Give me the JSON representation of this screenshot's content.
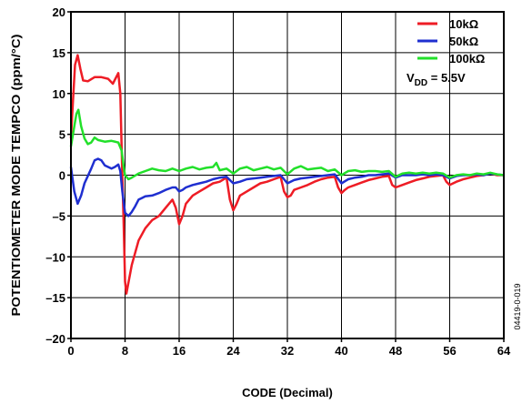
{
  "figure_id": "04419-0-019",
  "chart_data": {
    "type": "line",
    "title": "",
    "xlabel": "CODE (Decimal)",
    "ylabel": "POTENTIOMETER MODE TEMPCO (ppm/°C)",
    "xlim": [
      0,
      64
    ],
    "ylim": [
      -20,
      20
    ],
    "x_ticks": [
      0,
      8,
      16,
      24,
      32,
      40,
      48,
      56,
      64
    ],
    "y_ticks": [
      -20,
      -15,
      -10,
      -5,
      0,
      5,
      10,
      15,
      20
    ],
    "x_tick_labels": [
      "0",
      "8",
      "16",
      "24",
      "32",
      "40",
      "48",
      "56",
      "64"
    ],
    "y_tick_labels": [
      "–20",
      "–15",
      "–10",
      "–5",
      "0",
      "5",
      "10",
      "15",
      "20"
    ],
    "grid": true,
    "legend_position": "top-right",
    "annotation": {
      "main": "V",
      "sub": "DD",
      "rest": " = 5.5V"
    },
    "series": [
      {
        "name": "10kΩ",
        "color": "#ee1c25",
        "points": [
          [
            0,
            4.5
          ],
          [
            0.3,
            9
          ],
          [
            0.6,
            13.5
          ],
          [
            1,
            14.7
          ],
          [
            1.4,
            13
          ],
          [
            1.8,
            11.6
          ],
          [
            2.5,
            11.5
          ],
          [
            3.5,
            12
          ],
          [
            4.5,
            12
          ],
          [
            5.5,
            11.8
          ],
          [
            6.2,
            11.2
          ],
          [
            7,
            12.5
          ],
          [
            7.3,
            10
          ],
          [
            7.6,
            0
          ],
          [
            7.8,
            -6
          ],
          [
            8,
            -13
          ],
          [
            8.2,
            -14.5
          ],
          [
            9,
            -11
          ],
          [
            10,
            -8
          ],
          [
            11,
            -6.5
          ],
          [
            12,
            -5.5
          ],
          [
            13,
            -5
          ],
          [
            14,
            -4
          ],
          [
            15,
            -3
          ],
          [
            15.5,
            -4
          ],
          [
            16,
            -6
          ],
          [
            16.5,
            -5
          ],
          [
            17,
            -3.5
          ],
          [
            18,
            -2.5
          ],
          [
            19,
            -2
          ],
          [
            20,
            -1.5
          ],
          [
            21,
            -1
          ],
          [
            22,
            -0.8
          ],
          [
            23,
            -0.3
          ],
          [
            23.5,
            -3
          ],
          [
            24,
            -4.3
          ],
          [
            24.5,
            -3.5
          ],
          [
            25,
            -2.5
          ],
          [
            26,
            -2
          ],
          [
            27,
            -1.5
          ],
          [
            28,
            -1
          ],
          [
            29,
            -0.8
          ],
          [
            30,
            -0.5
          ],
          [
            31,
            -0.2
          ],
          [
            31.5,
            -2
          ],
          [
            32,
            -2.7
          ],
          [
            32.5,
            -2.5
          ],
          [
            33,
            -1.8
          ],
          [
            34,
            -1.5
          ],
          [
            35,
            -1.2
          ],
          [
            36,
            -0.8
          ],
          [
            37,
            -0.5
          ],
          [
            38,
            -0.3
          ],
          [
            39,
            -0.2
          ],
          [
            39.5,
            -1.5
          ],
          [
            40,
            -2.2
          ],
          [
            40.5,
            -1.8
          ],
          [
            41,
            -1.5
          ],
          [
            42,
            -1.2
          ],
          [
            43,
            -0.9
          ],
          [
            44,
            -0.6
          ],
          [
            45,
            -0.4
          ],
          [
            46,
            -0.2
          ],
          [
            47,
            -0.1
          ],
          [
            47.5,
            -1.2
          ],
          [
            48,
            -1.5
          ],
          [
            49,
            -1.2
          ],
          [
            50,
            -0.9
          ],
          [
            51,
            -0.6
          ],
          [
            52,
            -0.4
          ],
          [
            53,
            -0.2
          ],
          [
            54,
            -0.1
          ],
          [
            55,
            0
          ],
          [
            55.5,
            -0.8
          ],
          [
            56,
            -1.2
          ],
          [
            57,
            -0.8
          ],
          [
            58,
            -0.5
          ],
          [
            59,
            -0.3
          ],
          [
            60,
            -0.1
          ],
          [
            61,
            0
          ],
          [
            62,
            0.2
          ],
          [
            63,
            0
          ],
          [
            64,
            0
          ]
        ]
      },
      {
        "name": "50kΩ",
        "color": "#1f2fd0",
        "points": [
          [
            0,
            1
          ],
          [
            0.5,
            -2
          ],
          [
            1,
            -3.5
          ],
          [
            1.5,
            -2.5
          ],
          [
            2,
            -1
          ],
          [
            3,
            0.8
          ],
          [
            3.5,
            1.8
          ],
          [
            4,
            2
          ],
          [
            4.5,
            1.8
          ],
          [
            5,
            1.2
          ],
          [
            6,
            0.8
          ],
          [
            6.5,
            1
          ],
          [
            7,
            1.3
          ],
          [
            7.3,
            0.5
          ],
          [
            7.6,
            -2
          ],
          [
            8,
            -4.6
          ],
          [
            8.5,
            -5
          ],
          [
            9,
            -4.5
          ],
          [
            9.5,
            -3.8
          ],
          [
            10,
            -3
          ],
          [
            10.5,
            -2.8
          ],
          [
            11,
            -2.6
          ],
          [
            12,
            -2.5
          ],
          [
            13,
            -2.2
          ],
          [
            14,
            -1.8
          ],
          [
            15,
            -1.5
          ],
          [
            15.5,
            -1.5
          ],
          [
            16,
            -2
          ],
          [
            16.5,
            -1.8
          ],
          [
            17,
            -1.5
          ],
          [
            18,
            -1.2
          ],
          [
            19,
            -1
          ],
          [
            20,
            -0.8
          ],
          [
            21,
            -0.5
          ],
          [
            22,
            -0.3
          ],
          [
            23,
            -0.2
          ],
          [
            24,
            -1
          ],
          [
            25,
            -0.8
          ],
          [
            26,
            -0.5
          ],
          [
            27,
            -0.4
          ],
          [
            28,
            -0.3
          ],
          [
            29,
            -0.2
          ],
          [
            30,
            -0.1
          ],
          [
            31,
            0
          ],
          [
            32,
            -1
          ],
          [
            33,
            -0.6
          ],
          [
            34,
            -0.4
          ],
          [
            35,
            -0.3
          ],
          [
            36,
            -0.2
          ],
          [
            37,
            -0.1
          ],
          [
            38,
            0
          ],
          [
            39,
            0.1
          ],
          [
            40,
            -1
          ],
          [
            41,
            -0.5
          ],
          [
            42,
            -0.3
          ],
          [
            43,
            -0.2
          ],
          [
            44,
            0
          ],
          [
            45,
            0
          ],
          [
            46,
            0.1
          ],
          [
            47,
            0.2
          ],
          [
            48,
            -0.3
          ],
          [
            49,
            0
          ],
          [
            50,
            0
          ],
          [
            51,
            0
          ],
          [
            52,
            0.1
          ],
          [
            53,
            0
          ],
          [
            54,
            0.1
          ],
          [
            55,
            0
          ],
          [
            56,
            -0.4
          ],
          [
            57,
            -0.1
          ],
          [
            58,
            0
          ],
          [
            59,
            0
          ],
          [
            60,
            0.1
          ],
          [
            61,
            0
          ],
          [
            62,
            0.2
          ],
          [
            63,
            0.1
          ],
          [
            64,
            0
          ]
        ]
      },
      {
        "name": "100kΩ",
        "color": "#22e02a",
        "points": [
          [
            0,
            3.5
          ],
          [
            0.4,
            5.5
          ],
          [
            0.8,
            7.5
          ],
          [
            1.1,
            8
          ],
          [
            1.5,
            6
          ],
          [
            2,
            4.5
          ],
          [
            2.5,
            3.8
          ],
          [
            3,
            4
          ],
          [
            3.5,
            4.6
          ],
          [
            4,
            4.3
          ],
          [
            5,
            4.1
          ],
          [
            6,
            4.2
          ],
          [
            7,
            4
          ],
          [
            7.5,
            3
          ],
          [
            7.8,
            1
          ],
          [
            8,
            0
          ],
          [
            8.5,
            -0.5
          ],
          [
            9,
            -0.3
          ],
          [
            10,
            0.2
          ],
          [
            11,
            0.5
          ],
          [
            12,
            0.8
          ],
          [
            13,
            0.6
          ],
          [
            14,
            0.5
          ],
          [
            15,
            0.8
          ],
          [
            16,
            0.5
          ],
          [
            17,
            0.8
          ],
          [
            18,
            1
          ],
          [
            19,
            0.7
          ],
          [
            20,
            0.9
          ],
          [
            21,
            1
          ],
          [
            21.5,
            1.5
          ],
          [
            22,
            0.6
          ],
          [
            23,
            0.8
          ],
          [
            24,
            0.2
          ],
          [
            25,
            0.8
          ],
          [
            26,
            1
          ],
          [
            27,
            0.6
          ],
          [
            28,
            0.8
          ],
          [
            29,
            1
          ],
          [
            30,
            0.7
          ],
          [
            31,
            0.9
          ],
          [
            32,
            0.1
          ],
          [
            33,
            0.8
          ],
          [
            34,
            1.1
          ],
          [
            35,
            0.7
          ],
          [
            36,
            0.8
          ],
          [
            37,
            0.9
          ],
          [
            38,
            0.5
          ],
          [
            39,
            0.7
          ],
          [
            40,
            0
          ],
          [
            41,
            0.5
          ],
          [
            42,
            0.6
          ],
          [
            43,
            0.4
          ],
          [
            44,
            0.5
          ],
          [
            45,
            0.5
          ],
          [
            46,
            0.4
          ],
          [
            47,
            0.5
          ],
          [
            48,
            -0.2
          ],
          [
            49,
            0.2
          ],
          [
            50,
            0.3
          ],
          [
            51,
            0.2
          ],
          [
            52,
            0.3
          ],
          [
            53,
            0.2
          ],
          [
            54,
            0.3
          ],
          [
            55,
            0.2
          ],
          [
            56,
            -0.3
          ],
          [
            57,
            0
          ],
          [
            58,
            0.1
          ],
          [
            59,
            0
          ],
          [
            60,
            0.2
          ],
          [
            61,
            0.1
          ],
          [
            62,
            0.3
          ],
          [
            63,
            0.1
          ],
          [
            64,
            0
          ]
        ]
      }
    ]
  }
}
